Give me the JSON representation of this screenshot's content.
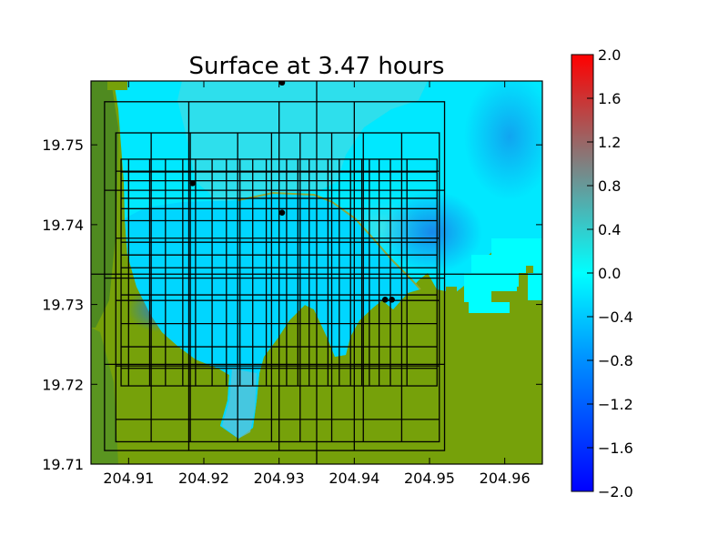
{
  "chart_data": {
    "type": "heatmap",
    "title": "Surface at 3.47 hours",
    "xlabel": "",
    "ylabel": "",
    "xlim": [
      204.905,
      204.965
    ],
    "ylim": [
      19.71,
      19.758
    ],
    "x_ticks": [
      "204.91",
      "204.92",
      "204.93",
      "204.94",
      "204.95",
      "204.96"
    ],
    "y_ticks": [
      "19.71",
      "19.72",
      "19.73",
      "19.74",
      "19.75"
    ],
    "x_tick_values": [
      204.91,
      204.92,
      204.93,
      204.94,
      204.95,
      204.96
    ],
    "y_tick_values": [
      19.71,
      19.72,
      19.73,
      19.74,
      19.75
    ],
    "colorbar": {
      "range": [
        -2.0,
        2.0
      ],
      "ticks": [
        "2.0",
        "1.6",
        "1.2",
        "0.8",
        "0.4",
        "0.0",
        "−0.4",
        "−0.8",
        "−1.2",
        "−1.6",
        "−2.0"
      ],
      "tick_values": [
        2.0,
        1.6,
        1.2,
        0.8,
        0.4,
        0.0,
        -0.4,
        -0.8,
        -1.2,
        -1.6,
        -2.0
      ],
      "colors": {
        "low": "#0000ff",
        "mid_low": "#00b4ff",
        "zero": "#00ffff",
        "mid_high": "#808080",
        "high": "#ff0000"
      }
    },
    "colors": {
      "land": "#6e9a08",
      "land_dark": "#4a8a22",
      "water_light": "#35e2ee",
      "water_main": "#00e4ff",
      "water_deep": "#0a86ee",
      "shoreline": "#8a9f3a"
    },
    "gauges": [
      {
        "x": 204.9304,
        "y": 19.7578
      },
      {
        "x": 204.9185,
        "y": 19.7452
      },
      {
        "x": 204.9304,
        "y": 19.7415
      },
      {
        "x": 204.9441,
        "y": 19.7306
      },
      {
        "x": 204.945,
        "y": 19.7306
      }
    ],
    "grid": {
      "outer_box": {
        "x": [
          204.905,
          204.965
        ],
        "y": [
          19.7338,
          19.7338
        ],
        "center_x": 204.935
      },
      "level1": {
        "x0": 204.9068,
        "x1": 204.952,
        "y0": 19.7117,
        "y1": 19.7554
      },
      "level2": {
        "x0": 204.9083,
        "x1": 204.9513,
        "y0": 19.7128,
        "y1": 19.7515
      },
      "level3": {
        "x0": 204.909,
        "x1": 204.951,
        "y0": 19.7198,
        "y1": 19.7482
      },
      "level1_vlines": [
        204.918,
        204.93,
        204.94
      ],
      "level1_hlines": [
        19.7225,
        19.7333,
        19.7443
      ],
      "level2_vlines": [
        204.913,
        204.9182,
        204.9245,
        204.929,
        204.9328,
        204.937,
        204.9412,
        204.9463
      ],
      "level2_hlines": [
        19.7156,
        19.7223,
        19.7305,
        19.7383,
        19.7467
      ],
      "level3_vlines": [
        204.91,
        204.9128,
        204.9149,
        204.9172,
        204.9189,
        204.9211,
        204.923,
        204.9248,
        204.9265,
        204.9283,
        204.931,
        204.9325,
        204.934,
        204.9365,
        204.938,
        204.9395,
        204.941,
        204.942,
        204.9433,
        204.9448,
        204.947
      ],
      "level3_hlines": [
        19.722,
        19.7247,
        19.7276,
        19.7312,
        19.7346,
        19.7362,
        19.7378,
        19.7405,
        19.742,
        19.7433,
        19.7455,
        19.7466
      ]
    }
  }
}
